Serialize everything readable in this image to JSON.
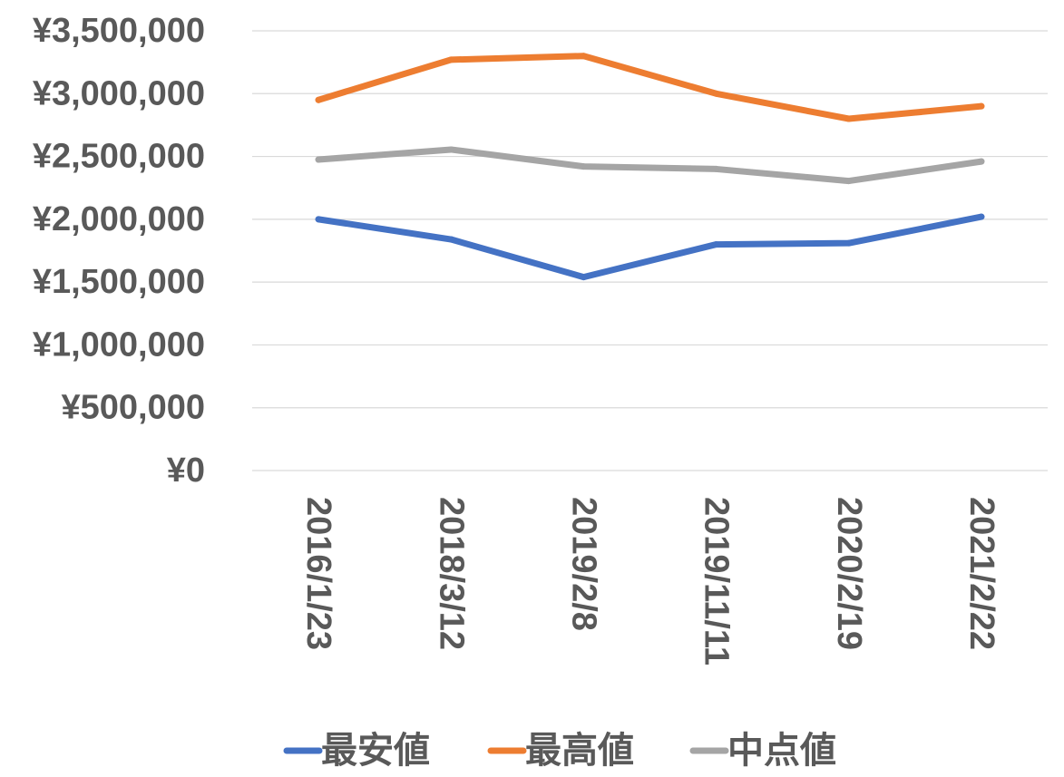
{
  "chart_data": {
    "type": "line",
    "title": "",
    "xlabel": "",
    "ylabel": "",
    "categories": [
      "2016/1/23",
      "2018/3/12",
      "2019/2/8",
      "2019/11/11",
      "2020/2/19",
      "2021/2/22"
    ],
    "ylim": [
      0,
      3500000
    ],
    "y_ticks": [
      0,
      500000,
      1000000,
      1500000,
      2000000,
      2500000,
      3000000,
      3500000
    ],
    "y_tick_labels": [
      "¥0",
      "¥500,000",
      "¥1,000,000",
      "¥1,500,000",
      "¥2,000,000",
      "¥2,500,000",
      "¥3,000,000",
      "¥3,500,000"
    ],
    "grid": true,
    "legend_position": "bottom",
    "series": [
      {
        "name": "最安値",
        "color": "#4472C4",
        "values": [
          2000000,
          1840000,
          1540000,
          1800000,
          1810000,
          2020000
        ]
      },
      {
        "name": "最高値",
        "color": "#ED7D31",
        "values": [
          2950000,
          3270000,
          3300000,
          3000000,
          2800000,
          2900000
        ]
      },
      {
        "name": "中点値",
        "color": "#A5A5A5",
        "values": [
          2475000,
          2555000,
          2420000,
          2400000,
          2305000,
          2460000
        ]
      }
    ]
  }
}
